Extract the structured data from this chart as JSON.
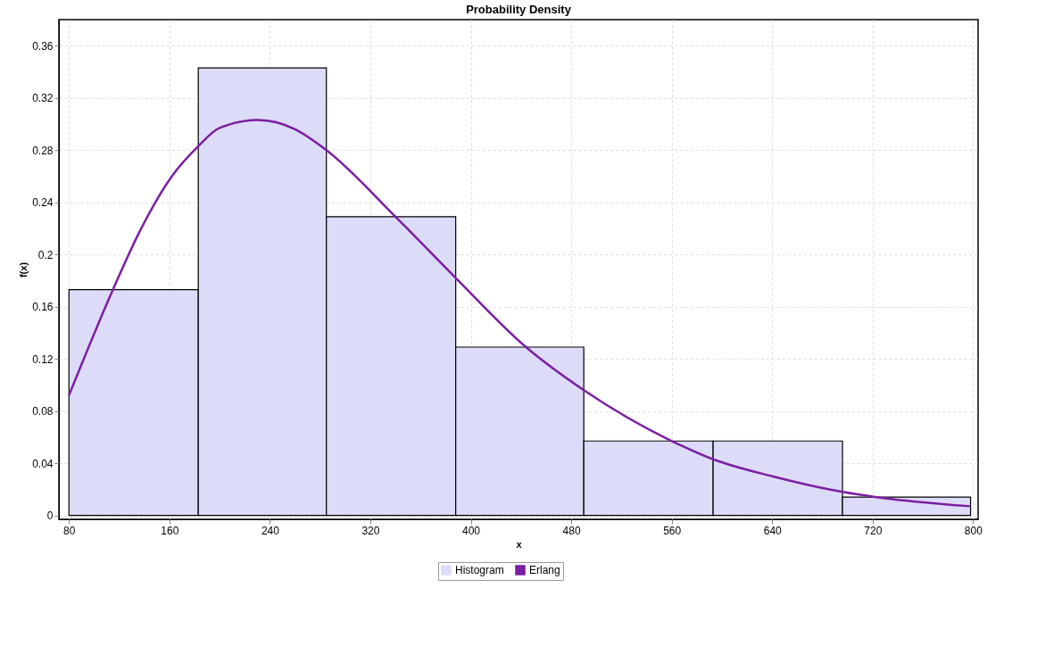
{
  "chart_data": {
    "type": "histogram",
    "title": "Probability Density",
    "xlabel": "x",
    "ylabel": "f(x)",
    "bins": [
      80,
      183,
      285,
      388,
      490,
      593,
      696,
      798
    ],
    "series": [
      {
        "name": "Histogram",
        "color": "#dcdcf8",
        "values": [
          0.173,
          0.343,
          0.229,
          0.129,
          0.057,
          0.057,
          0.014
        ]
      },
      {
        "name": "Erlang",
        "type": "line",
        "color": "#7b1fa2",
        "x": [
          80,
          115,
          136,
          162,
          183,
          200,
          231,
          260,
          285,
          340,
          387,
          444,
          490,
          560,
          593,
          640,
          696,
          723,
          798
        ],
        "values": [
          0.092,
          0.173,
          0.217,
          0.26,
          0.283,
          0.297,
          0.303,
          0.296,
          0.28,
          0.229,
          0.183,
          0.129,
          0.096,
          0.057,
          0.043,
          0.03,
          0.018,
          0.014,
          0.007
        ]
      }
    ],
    "xlim": [
      72,
      804
    ],
    "xticks": [
      80,
      160,
      240,
      320,
      400,
      480,
      560,
      640,
      720,
      800
    ],
    "ylim": [
      -0.003,
      0.38
    ],
    "yticks": [
      0,
      0.04,
      0.08,
      0.12,
      0.16,
      0.2,
      0.24,
      0.28,
      0.32,
      0.36
    ],
    "grid": true,
    "legend": "bottom"
  }
}
